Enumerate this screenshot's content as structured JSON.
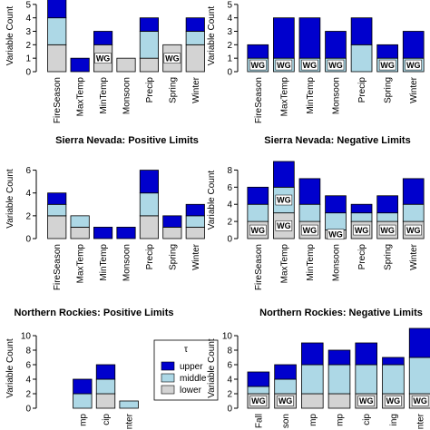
{
  "chart_data": [
    {
      "type": "bar",
      "stacked": true,
      "ylabel": "Variable Count",
      "categories": [
        "FireSeason",
        "MaxTemp",
        "MinTemp",
        "Monsoon",
        "Precip",
        "Spring",
        "Winter"
      ],
      "series": [
        {
          "name": "lower",
          "color": "#d3d3d3",
          "values": [
            2,
            0,
            2,
            1,
            1,
            2,
            2
          ]
        },
        {
          "name": "middle",
          "color": "#add8e6",
          "values": [
            2,
            0,
            0,
            0,
            2,
            0,
            1
          ]
        },
        {
          "name": "upper",
          "color": "#0000cd",
          "values": [
            2,
            1,
            1,
            0,
            1,
            0,
            1
          ]
        }
      ],
      "ylim": [
        0,
        6
      ],
      "yticks": [
        0,
        1,
        2,
        3,
        4,
        5
      ],
      "annotations": [
        {
          "text": "WG",
          "category": "MinTemp",
          "series": "lower"
        },
        {
          "text": "WG",
          "category": "Spring",
          "series": "lower"
        }
      ]
    },
    {
      "type": "bar",
      "stacked": true,
      "ylabel": "Variable Count",
      "categories": [
        "FireSeason",
        "MaxTemp",
        "MinTemp",
        "Monsoon",
        "Precip",
        "Spring",
        "Winter"
      ],
      "series": [
        {
          "name": "lower",
          "color": "#d3d3d3",
          "values": [
            0,
            0,
            0,
            0,
            0,
            0,
            0
          ]
        },
        {
          "name": "middle",
          "color": "#add8e6",
          "values": [
            1,
            1,
            1,
            1,
            2,
            1,
            1
          ]
        },
        {
          "name": "upper",
          "color": "#0000cd",
          "values": [
            1,
            3,
            3,
            2,
            2,
            1,
            2
          ]
        }
      ],
      "ylim": [
        0,
        6
      ],
      "yticks": [
        0,
        1,
        2,
        3,
        4,
        5
      ],
      "annotations": [
        {
          "text": "WG",
          "category": "FireSeason",
          "series": "middle"
        },
        {
          "text": "WG",
          "category": "MaxTemp",
          "series": "middle"
        },
        {
          "text": "WG",
          "category": "MinTemp",
          "series": "middle"
        },
        {
          "text": "WG",
          "category": "Monsoon",
          "series": "middle"
        },
        {
          "text": "WG",
          "category": "Spring",
          "series": "middle"
        },
        {
          "text": "WG",
          "category": "Winter",
          "series": "middle"
        }
      ]
    },
    {
      "type": "bar",
      "stacked": true,
      "title": "Sierra Nevada: Positive Limits",
      "ylabel": "Variable Count",
      "categories": [
        "FireSeason",
        "MaxTemp",
        "MinTemp",
        "Monsoon",
        "Precip",
        "Spring",
        "Winter"
      ],
      "series": [
        {
          "name": "lower",
          "color": "#d3d3d3",
          "values": [
            2,
            1,
            0,
            0,
            2,
            1,
            1
          ]
        },
        {
          "name": "middle",
          "color": "#add8e6",
          "values": [
            1,
            1,
            0,
            0,
            2,
            0,
            1
          ]
        },
        {
          "name": "upper",
          "color": "#0000cd",
          "values": [
            1,
            0,
            1,
            1,
            2,
            1,
            1
          ]
        }
      ],
      "ylim": [
        0,
        7
      ],
      "yticks": [
        0,
        2,
        4,
        6
      ]
    },
    {
      "type": "bar",
      "stacked": true,
      "title": "Sierra Nevada: Negative Limits",
      "ylabel": "Variable Count",
      "categories": [
        "FireSeason",
        "MaxTemp",
        "MinTemp",
        "Monsoon",
        "Precip",
        "Spring",
        "Winter"
      ],
      "series": [
        {
          "name": "lower",
          "color": "#d3d3d3",
          "values": [
            2,
            3,
            2,
            1,
            2,
            2,
            2
          ]
        },
        {
          "name": "middle",
          "color": "#add8e6",
          "values": [
            2,
            3,
            2,
            2,
            1,
            1,
            2
          ]
        },
        {
          "name": "upper",
          "color": "#0000cd",
          "values": [
            2,
            3,
            3,
            2,
            1,
            2,
            3
          ]
        }
      ],
      "ylim": [
        0,
        9
      ],
      "yticks": [
        0,
        2,
        4,
        6,
        8
      ],
      "annotations": [
        {
          "text": "WG",
          "category": "MaxTemp",
          "series": "middle"
        },
        {
          "text": "WG",
          "category": "FireSeason",
          "series": "lower"
        },
        {
          "text": "WG",
          "category": "MaxTemp",
          "series": "lower"
        },
        {
          "text": "WG",
          "category": "MinTemp",
          "series": "lower"
        },
        {
          "text": "WG",
          "category": "Monsoon",
          "series": "lower"
        },
        {
          "text": "WG",
          "category": "Precip",
          "series": "lower"
        },
        {
          "text": "WG",
          "category": "Spring",
          "series": "lower"
        },
        {
          "text": "WG",
          "category": "Winter",
          "series": "lower"
        }
      ]
    },
    {
      "type": "bar",
      "stacked": true,
      "title": "Northern Rockies: Positive Limits",
      "ylabel": "Variable Count",
      "categories": [
        "mp",
        "cip",
        "nter"
      ],
      "series": [
        {
          "name": "lower",
          "color": "#d3d3d3",
          "values": [
            0,
            2,
            0
          ]
        },
        {
          "name": "middle",
          "color": "#add8e6",
          "values": [
            2,
            2,
            1
          ]
        },
        {
          "name": "upper",
          "color": "#0000cd",
          "values": [
            2,
            2,
            0
          ]
        }
      ],
      "ylim": [
        0,
        11
      ],
      "yticks": [
        0,
        2,
        4,
        6,
        8,
        10
      ],
      "legend": {
        "title": "τ"
      }
    },
    {
      "type": "bar",
      "stacked": true,
      "title": "Northern Rockies: Negative Limits",
      "ylabel": "Variable Count",
      "categories": [
        "Fall",
        "son",
        "mp",
        "mp",
        "cip",
        "ing",
        "nter"
      ],
      "series": [
        {
          "name": "lower",
          "color": "#d3d3d3",
          "values": [
            2,
            2,
            2,
            2,
            2,
            2,
            2
          ]
        },
        {
          "name": "middle",
          "color": "#add8e6",
          "values": [
            1,
            2,
            4,
            4,
            4,
            4,
            5
          ]
        },
        {
          "name": "upper",
          "color": "#0000cd",
          "values": [
            2,
            2,
            3,
            2,
            3,
            1,
            4
          ]
        }
      ],
      "ylim": [
        0,
        11
      ],
      "yticks": [
        0,
        2,
        4,
        6,
        8,
        10
      ],
      "annotations": [
        {
          "text": "WG",
          "category": "Fall",
          "series": "lower"
        },
        {
          "text": "WG",
          "category": "son",
          "series": "lower"
        },
        {
          "text": "WG",
          "category": "cip",
          "series": "lower"
        },
        {
          "text": "WG",
          "category": "ing",
          "series": "lower"
        },
        {
          "text": "WG",
          "category": "nter",
          "series": "lower"
        }
      ]
    }
  ]
}
